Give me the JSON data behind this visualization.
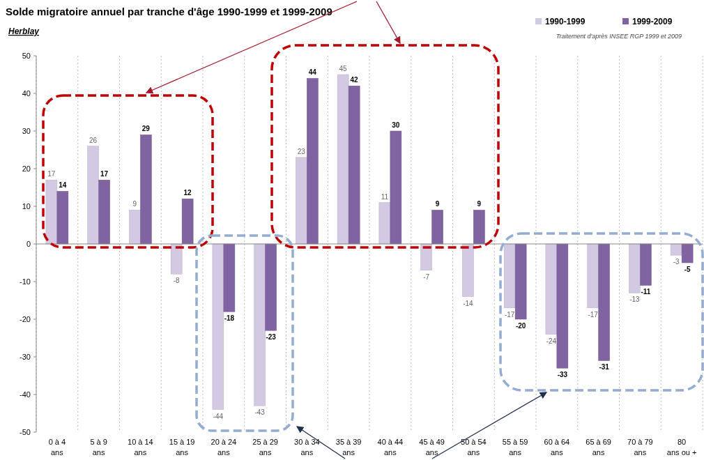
{
  "chart_data": {
    "type": "bar",
    "title": "Solde migratoire annuel par tranche d'âge 1990-1999 et 1999-2009",
    "subtitle": "Herblay",
    "annotations": [
      "Traitement d'après INSEE RGP 1999 et 2009"
    ],
    "categories": [
      "0 à 4\nans",
      "5 à 9\nans",
      "10 à 14\nans",
      "15 à 19\nans",
      "20 à 24\nans",
      "25 à 29\nans",
      "30 à 34\nans",
      "35 à 39\nans",
      "40 à 44\nans",
      "45 à 49\nans",
      "50 à 54\nans",
      "55 à 59\nans",
      "60 à 64\nans",
      "65 à 69\nans",
      "70 à 79\nans",
      "80\nans ou +"
    ],
    "series": [
      {
        "name": "1990-1999",
        "color": "#d4c9e2",
        "values": [
          17,
          26,
          9,
          -8,
          -44,
          -43,
          23,
          45,
          11,
          -7,
          -14,
          -17,
          -24,
          -17,
          -13,
          -3
        ]
      },
      {
        "name": "1999-2009",
        "color": "#8064a2",
        "values": [
          14,
          17,
          29,
          12,
          -18,
          -23,
          44,
          42,
          30,
          9,
          9,
          -20,
          -33,
          -31,
          -11,
          -5
        ]
      }
    ],
    "ylim": [
      -50,
      50
    ],
    "yticks": [
      -50,
      -40,
      -30,
      -20,
      -10,
      0,
      10,
      20,
      30,
      40,
      50
    ],
    "grid": "x",
    "legend": "top right",
    "data_labels": true
  }
}
